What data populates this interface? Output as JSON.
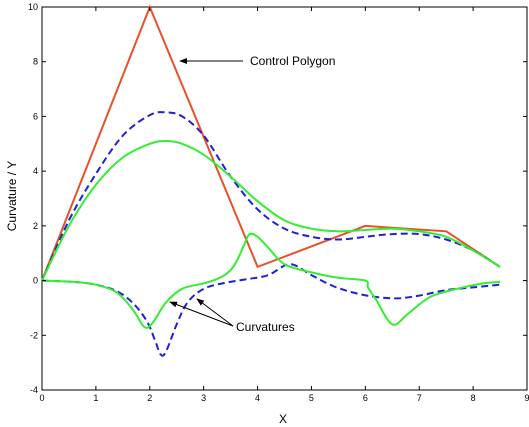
{
  "chart_data": {
    "type": "line",
    "title": "",
    "xlabel": "X",
    "ylabel": "Curvature / Y",
    "xlim": [
      0,
      9
    ],
    "ylim": [
      -4,
      10
    ],
    "xticks": [
      "0",
      "1",
      "2",
      "3",
      "4",
      "5",
      "6",
      "7",
      "8",
      "9"
    ],
    "yticks": [
      "-4",
      "-2",
      "0",
      "2",
      "4",
      "6",
      "8",
      "10"
    ],
    "grid": false,
    "legend": "none",
    "series": [
      {
        "color": "#e8502a",
        "style": "solid",
        "points": [
          [
            0,
            0
          ],
          [
            2,
            10
          ],
          [
            4,
            0.5
          ],
          [
            6,
            2
          ],
          [
            7.5,
            1.8
          ],
          [
            8.5,
            0.5
          ]
        ]
      },
      {
        "color": "#2020d8",
        "style": "dashed",
        "points": [
          [
            0,
            0
          ],
          [
            0.5,
            2.2
          ],
          [
            1,
            3.9
          ],
          [
            1.5,
            5.3
          ],
          [
            2,
            6.05
          ],
          [
            2.3,
            6.15
          ],
          [
            2.6,
            6.0
          ],
          [
            3,
            5.3
          ],
          [
            3.5,
            3.8
          ],
          [
            4,
            2.6
          ],
          [
            4.5,
            1.9
          ],
          [
            5,
            1.6
          ],
          [
            5.5,
            1.5
          ],
          [
            6,
            1.6
          ],
          [
            6.5,
            1.7
          ],
          [
            7,
            1.7
          ],
          [
            7.5,
            1.5
          ],
          [
            8,
            1.1
          ],
          [
            8.5,
            0.5
          ]
        ]
      },
      {
        "color": "#33ee33",
        "style": "solid",
        "points": [
          [
            0,
            0
          ],
          [
            0.5,
            2.0
          ],
          [
            1,
            3.5
          ],
          [
            1.5,
            4.5
          ],
          [
            2,
            5.0
          ],
          [
            2.3,
            5.1
          ],
          [
            2.6,
            5.0
          ],
          [
            3,
            4.6
          ],
          [
            3.5,
            3.8
          ],
          [
            4,
            2.9
          ],
          [
            4.5,
            2.2
          ],
          [
            5,
            1.9
          ],
          [
            5.5,
            1.8
          ],
          [
            6,
            1.85
          ],
          [
            6.5,
            1.9
          ],
          [
            7,
            1.8
          ],
          [
            7.5,
            1.6
          ],
          [
            8,
            1.1
          ],
          [
            8.5,
            0.5
          ]
        ]
      },
      {
        "color": "#2020d8",
        "style": "dashed",
        "points": [
          [
            0,
            0
          ],
          [
            0.6,
            -0.05
          ],
          [
            1.0,
            -0.15
          ],
          [
            1.4,
            -0.4
          ],
          [
            1.7,
            -0.85
          ],
          [
            1.95,
            -1.5
          ],
          [
            2.1,
            -2.2
          ],
          [
            2.2,
            -2.7
          ],
          [
            2.3,
            -2.6
          ],
          [
            2.5,
            -1.6
          ],
          [
            2.7,
            -0.8
          ],
          [
            3.0,
            -0.3
          ],
          [
            3.4,
            -0.08
          ],
          [
            3.8,
            0.05
          ],
          [
            4.2,
            0.2
          ],
          [
            4.6,
            0.6
          ],
          [
            5.0,
            0.2
          ],
          [
            5.4,
            -0.2
          ],
          [
            5.8,
            -0.45
          ],
          [
            6.2,
            -0.6
          ],
          [
            6.6,
            -0.65
          ],
          [
            7.0,
            -0.55
          ],
          [
            7.5,
            -0.35
          ],
          [
            8.0,
            -0.25
          ],
          [
            8.5,
            -0.15
          ]
        ]
      },
      {
        "color": "#33ee33",
        "style": "solid",
        "points": [
          [
            0,
            0
          ],
          [
            0.6,
            -0.05
          ],
          [
            1.0,
            -0.15
          ],
          [
            1.4,
            -0.45
          ],
          [
            1.7,
            -1.1
          ],
          [
            1.9,
            -1.7
          ],
          [
            2.05,
            -1.55
          ],
          [
            2.3,
            -0.8
          ],
          [
            2.6,
            -0.3
          ],
          [
            3.0,
            -0.1
          ],
          [
            3.3,
            0.1
          ],
          [
            3.55,
            0.5
          ],
          [
            3.75,
            1.3
          ],
          [
            3.85,
            1.7
          ],
          [
            4.0,
            1.6
          ],
          [
            4.2,
            1.2
          ],
          [
            4.5,
            0.6
          ],
          [
            5.0,
            0.3
          ],
          [
            5.5,
            0.1
          ],
          [
            6.0,
            0.0
          ],
          [
            6.05,
            -0.25
          ],
          [
            6.2,
            -0.7
          ],
          [
            6.5,
            -1.6
          ],
          [
            6.8,
            -1.2
          ],
          [
            7.2,
            -0.6
          ],
          [
            7.7,
            -0.3
          ],
          [
            8.2,
            -0.1
          ],
          [
            8.5,
            -0.05
          ]
        ]
      }
    ],
    "annotations": [
      {
        "text": "Control Polygon",
        "x_text": 6.3,
        "y_text": 8,
        "x_arrow": 4.2,
        "y_arrow": 8.3,
        "x_end": 4.2,
        "y_end": 8.3,
        "arrows": [
          [
            5.9,
            8.3,
            4.2,
            8.3
          ]
        ]
      },
      {
        "text": "Curvatures",
        "arrows": [
          [
            5.5,
            -1.9,
            4.8,
            -1.8
          ],
          [
            5.5,
            -1.9,
            4.8,
            -1.8
          ]
        ]
      }
    ]
  },
  "labels": {
    "control_polygon": "Control Polygon",
    "curvatures": "Curvatures"
  }
}
